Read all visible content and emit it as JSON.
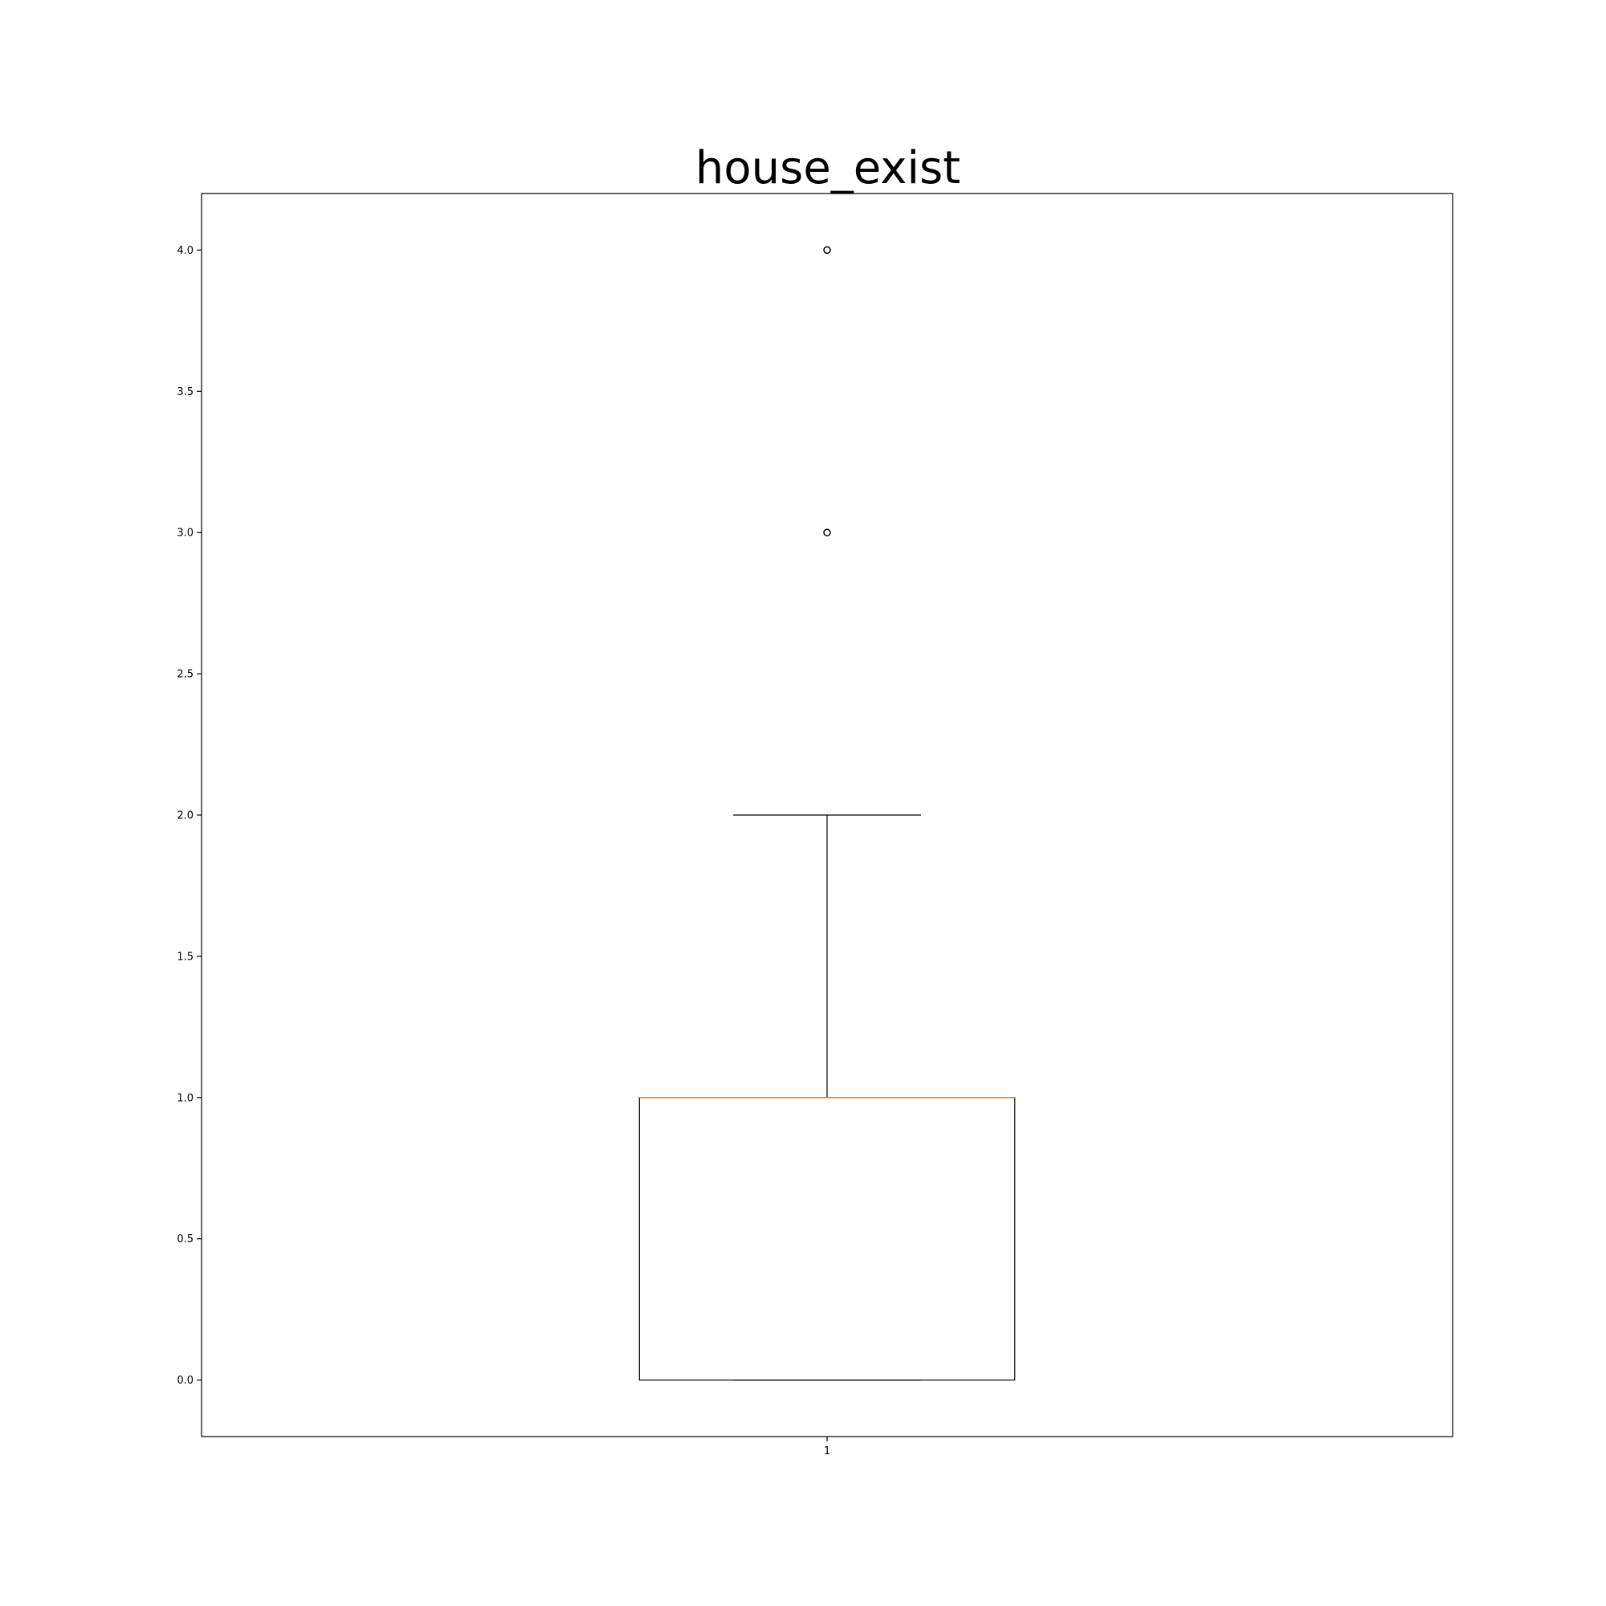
{
  "chart_data": {
    "type": "box",
    "title": "house_exist",
    "xlabel": "",
    "ylabel": "",
    "categories": [
      "1"
    ],
    "boxes": [
      {
        "category": "1",
        "whisker_low": 0.0,
        "q1": 0.0,
        "median": 1.0,
        "q3": 1.0,
        "whisker_high": 2.0,
        "outliers": [
          3.0,
          4.0
        ]
      }
    ],
    "ylim": [
      -0.2,
      4.2
    ],
    "yticks": [
      "0.0",
      "0.5",
      "1.0",
      "1.5",
      "2.0",
      "2.5",
      "3.0",
      "3.5",
      "4.0"
    ],
    "xticks": [
      "1"
    ],
    "grid": false,
    "colors": {
      "box": "#000000",
      "median": "#ff7f0e",
      "outlier_edge": "#000000"
    }
  }
}
